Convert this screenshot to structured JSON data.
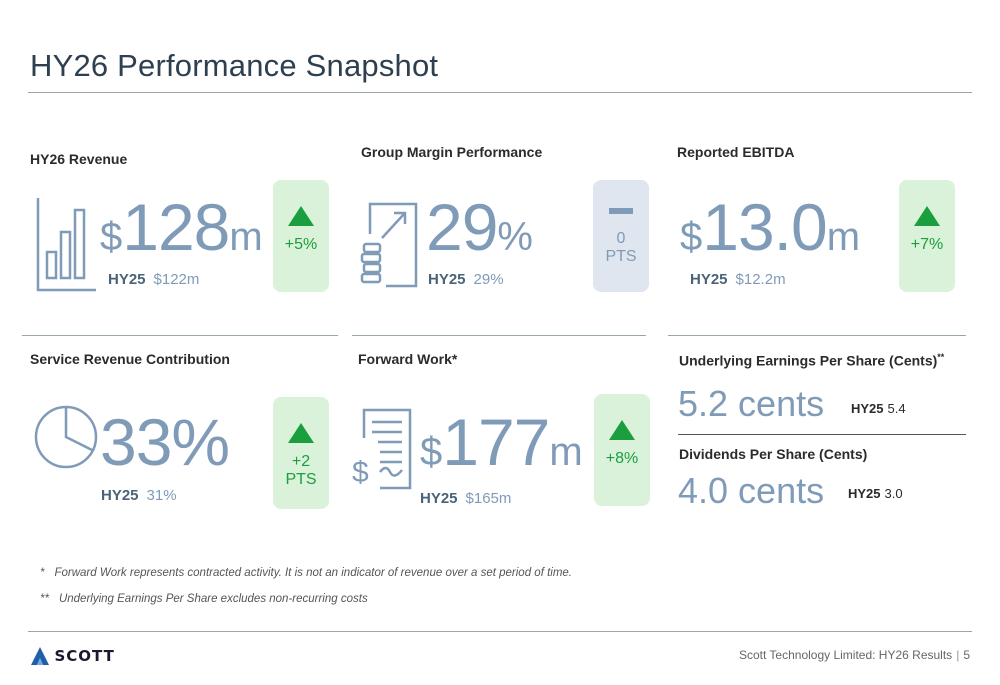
{
  "page": {
    "title": "HY26 Performance Snapshot",
    "footer": "Scott Technology Limited: HY26 Results",
    "page_number": "5",
    "logo_text": "SCOTT"
  },
  "colors": {
    "accent": "#7f9bb8",
    "positive": "#1a9e3e",
    "positive_bg": "#d9f2d9",
    "neutral_bg": "#dfe6ef"
  },
  "revenue": {
    "label": "HY26 Revenue",
    "prefix": "$",
    "value": "128",
    "suffix": "m",
    "prev_label": "HY25",
    "prev_value": "$122m",
    "change": "+5%",
    "icon": "bar-chart-icon"
  },
  "margin": {
    "label": "Group Margin Performance",
    "value": "29",
    "suffix": "%",
    "prev_label": "HY25",
    "prev_value": "29%",
    "change_value": "0",
    "change_unit": "PTS",
    "icon": "growth-coins-icon"
  },
  "ebitda": {
    "label": "Reported EBITDA",
    "prefix": "$",
    "value": "13.0",
    "suffix": "m",
    "prev_label": "HY25",
    "prev_value": "$12.2m",
    "change": "+7%"
  },
  "service": {
    "label": "Service Revenue Contribution",
    "value": "33%",
    "prev_label": "HY25",
    "prev_value": "31%",
    "change_value": "+2",
    "change_unit": "PTS",
    "icon": "pie-chart-icon"
  },
  "forward": {
    "label": "Forward Work*",
    "prefix": "$",
    "value": "177",
    "suffix": "m",
    "prev_label": "HY25",
    "prev_value": "$165m",
    "change": "+8%",
    "icon": "contract-document-icon"
  },
  "eps": {
    "label": "Underlying Earnings Per Share (Cents)",
    "label_mark": "**",
    "value": "5.2 cents",
    "prev_label": "HY25",
    "prev_value": "5.4"
  },
  "dividends": {
    "label": "Dividends Per Share (Cents)",
    "value": "4.0 cents",
    "prev_label": "HY25",
    "prev_value": "3.0"
  },
  "footnotes": [
    {
      "mark": "*",
      "text": "Forward Work represents contracted activity. It is not an indicator of revenue over a set period of time."
    },
    {
      "mark": "**",
      "text": "Underlying Earnings Per Share excludes non-recurring costs"
    }
  ]
}
